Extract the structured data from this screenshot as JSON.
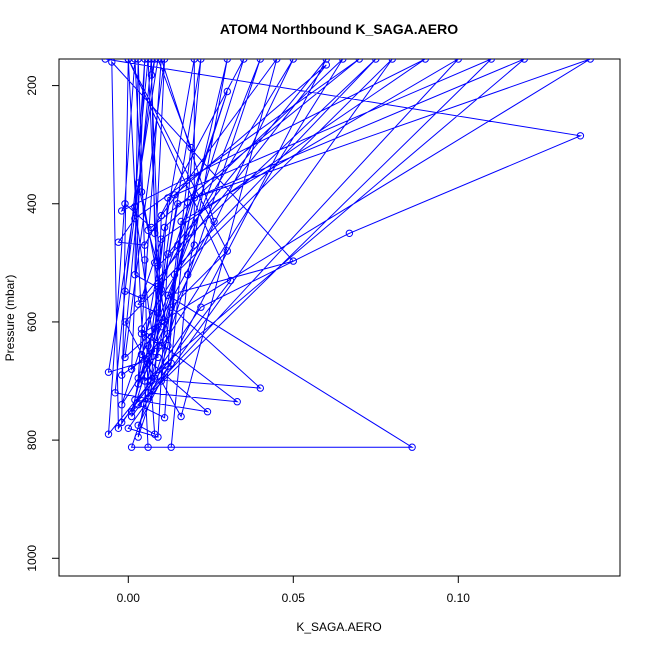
{
  "chart_data": {
    "type": "scatter",
    "title": "ATOM4 Northbound K_SAGA.AERO",
    "xlabel": "K_SAGA.AERO",
    "ylabel": "Pressure (mbar)",
    "xlim": [
      -0.021,
      0.149
    ],
    "ylim": [
      1030,
      155
    ],
    "x_ticks": [
      0.0,
      0.05,
      0.1
    ],
    "x_tick_labels": [
      "0.00",
      "0.05",
      "0.10"
    ],
    "y_ticks": [
      200,
      400,
      600,
      800,
      1000
    ],
    "y_tick_labels": [
      "200",
      "400",
      "600",
      "800",
      "1000"
    ],
    "grid": false,
    "style": {
      "color": "#0000ff",
      "marker": "open-circle",
      "connect": "lines"
    },
    "series": [
      {
        "values": [
          [
            -0.007,
            155
          ],
          [
            0.137,
            285
          ],
          [
            0.067,
            450
          ],
          [
            0.022,
            575
          ],
          [
            -0.003,
            780
          ],
          [
            -0.005,
            160
          ],
          [
            0.05,
            497
          ],
          [
            0.012,
            555
          ],
          [
            0.086,
            812
          ],
          [
            0.006,
            812
          ],
          [
            0.0,
            155
          ],
          [
            0.031,
            530
          ],
          [
            -0.002,
            770
          ],
          [
            0.0,
            155
          ],
          [
            0.03,
            480
          ],
          [
            0.013,
            575
          ],
          [
            0.04,
            712
          ],
          [
            0.003,
            695
          ],
          [
            0.01,
            155
          ],
          [
            0.026,
            430
          ],
          [
            0.004,
            655
          ],
          [
            0.024,
            752
          ],
          [
            0.002,
            732
          ],
          [
            0.02,
            155
          ],
          [
            0.02,
            470
          ],
          [
            0.004,
            612
          ],
          [
            0.033,
            735
          ],
          [
            0.006,
            720
          ],
          [
            0.03,
            155
          ],
          [
            0.018,
            520
          ],
          [
            0.013,
            812
          ],
          [
            0.001,
            812
          ],
          [
            0.04,
            155
          ],
          [
            0.006,
            640
          ],
          [
            0.008,
            790
          ],
          [
            0.003,
            775
          ],
          [
            0.06,
            155
          ],
          [
            0.012,
            485
          ],
          [
            0.009,
            795
          ],
          [
            0.0,
            780
          ],
          [
            0.08,
            155
          ],
          [
            0.014,
            520
          ],
          [
            0.011,
            762
          ],
          [
            0.003,
            740
          ],
          [
            0.1,
            155
          ],
          [
            0.016,
            430
          ],
          [
            0.012,
            675
          ],
          [
            0.005,
            700
          ],
          [
            0.12,
            155
          ],
          [
            0.02,
            390
          ],
          [
            0.01,
            640
          ],
          [
            0.004,
            620
          ],
          [
            0.14,
            155
          ],
          [
            0.015,
            400
          ],
          [
            0.009,
            585
          ],
          [
            0.003,
            570
          ],
          [
            0.06,
            165
          ],
          [
            0.014,
            385
          ],
          [
            0.01,
            545
          ],
          [
            0.002,
            520
          ],
          [
            0.003,
            155
          ],
          [
            0.005,
            495
          ],
          [
            0.006,
            730
          ],
          [
            -0.004,
            720
          ],
          [
            0.006,
            155
          ],
          [
            0.009,
            540
          ],
          [
            0.007,
            700
          ],
          [
            -0.006,
            790
          ],
          [
            0.002,
            155
          ],
          [
            0.004,
            380
          ],
          [
            0.012,
            620
          ],
          [
            0.001,
            680
          ],
          [
            0.005,
            155
          ],
          [
            0.002,
            405
          ],
          [
            0.008,
            650
          ],
          [
            -0.002,
            690
          ],
          [
            0.007,
            155
          ],
          [
            0.008,
            450
          ],
          [
            0.011,
            600
          ],
          [
            -0.001,
            660
          ],
          [
            0.011,
            155
          ],
          [
            0.008,
            500
          ],
          [
            0.009,
            660
          ],
          [
            -0.006,
            685
          ],
          [
            0.009,
            155
          ],
          [
            0.019,
            305
          ],
          [
            0.012,
            640
          ],
          [
            0.003,
            795
          ],
          [
            0.022,
            155
          ],
          [
            0.018,
            398
          ],
          [
            0.013,
            670
          ],
          [
            0.001,
            760
          ],
          [
            0.035,
            155
          ],
          [
            0.005,
            470
          ],
          [
            -0.003,
            465
          ],
          [
            0.002,
            425
          ],
          [
            0.07,
            155
          ],
          [
            0.007,
            440
          ],
          [
            -0.001,
            400
          ],
          [
            -0.002,
            412
          ],
          [
            0.09,
            155
          ],
          [
            0.01,
            460
          ],
          [
            0.004,
            560
          ],
          [
            -0.001,
            548
          ],
          [
            0.008,
            155
          ],
          [
            0.007,
            182
          ],
          [
            0.01,
            608
          ],
          [
            0.004,
            690
          ],
          [
            0.05,
            155
          ],
          [
            0.009,
            535
          ],
          [
            0.006,
            670
          ],
          [
            -0.002,
            740
          ],
          [
            0.03,
            210
          ],
          [
            0.015,
            470
          ],
          [
            0.01,
            700
          ],
          [
            0.016,
            760
          ],
          [
            0.045,
            155
          ],
          [
            0.01,
            420
          ],
          [
            0.009,
            585
          ],
          [
            0.003,
            705
          ],
          [
            0.065,
            155
          ],
          [
            0.011,
            440
          ],
          [
            0.007,
            625
          ],
          [
            0.001,
            752
          ],
          [
            0.11,
            155
          ],
          [
            0.012,
            390
          ],
          [
            0.008,
            695
          ],
          [
            -0.001,
            600
          ],
          [
            0.075,
            155
          ],
          [
            0.009,
            505
          ],
          [
            0.006,
            445
          ],
          [
            0.003,
            365
          ]
        ]
      }
    ]
  }
}
